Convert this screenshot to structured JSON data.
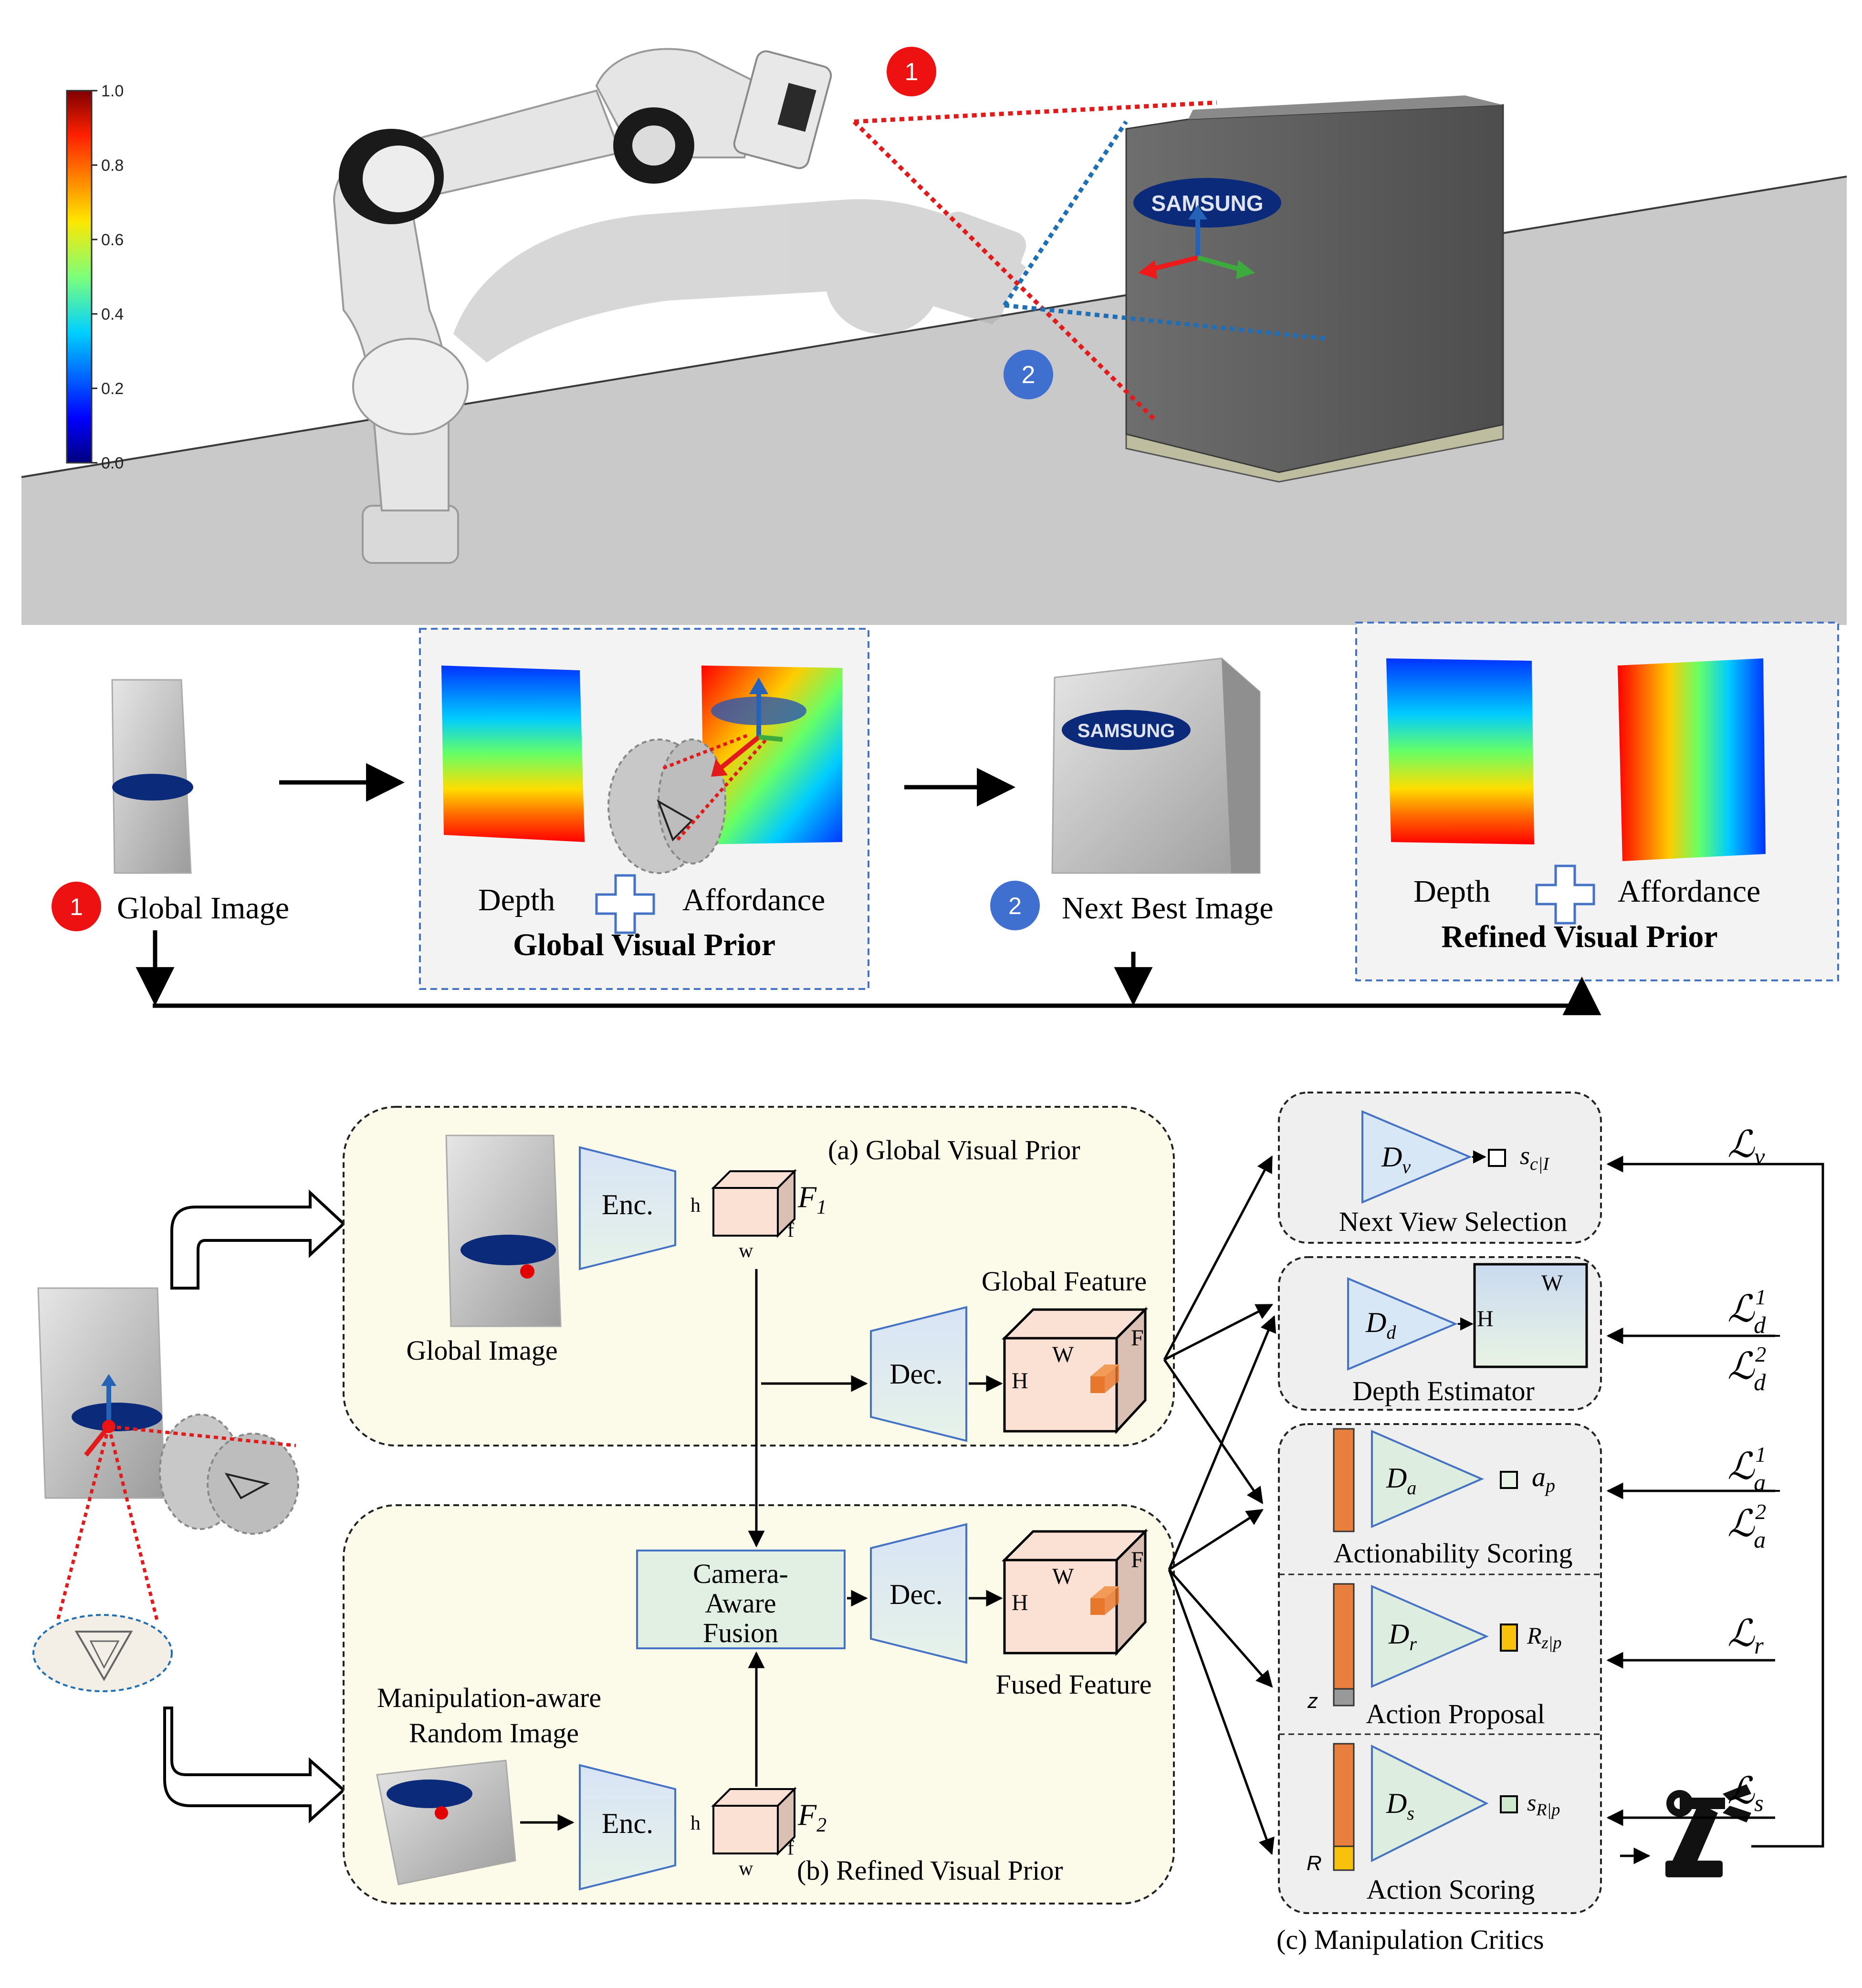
{
  "scene": {
    "colorbar_ticks": [
      "1.0",
      "0.8",
      "0.6",
      "0.4",
      "0.2",
      "0.0"
    ],
    "brand_logo": "SAMSUNG",
    "markers": [
      "1",
      "2"
    ]
  },
  "pipeline": {
    "global_image": "Global Image",
    "depth": "Depth",
    "affordance": "Affordance",
    "global_prior_title": "Global Visual Prior",
    "next_best_image": "Next Best Image",
    "refined_prior_title": "Refined Visual Prior",
    "marker_1": "1",
    "marker_2": "2"
  },
  "arch": {
    "panel_a_title": "(a)  Global Visual Prior",
    "panel_b_title": "(b)  Refined Visual Prior",
    "panel_c_title": "(c)  Manipulation Critics",
    "global_image": "Global  Image",
    "random_image_line1": "Manipulation-aware",
    "random_image_line2": "Random Image",
    "enc": "Enc.",
    "dec": "Dec.",
    "f1": "F",
    "f1_sub": "1",
    "f2": "F",
    "f2_sub": "2",
    "dim_h": "h",
    "dim_w": "w",
    "dim_f": "f",
    "dim_H": "H",
    "dim_W": "W",
    "dim_F": "F",
    "global_feature": "Global Feature",
    "fused_feature": "Fused Feature",
    "fusion_line1": "Camera-",
    "fusion_line2": "Aware",
    "fusion_line3": "Fusion",
    "z_label": "z",
    "r_label": "R"
  },
  "critics": {
    "next_view": {
      "label": "Next View Selection",
      "net": "D",
      "net_sub": "v",
      "out": "s",
      "out_sub": "c|I"
    },
    "depth": {
      "label": "Depth Estimator",
      "net": "D",
      "net_sub": "d"
    },
    "actionability": {
      "label": "Actionability Scoring",
      "net": "D",
      "net_sub": "a",
      "out": "a",
      "out_sub": "p"
    },
    "proposal": {
      "label": "Action Proposal",
      "net": "D",
      "net_sub": "r",
      "out": "R",
      "out_sub": "z|p"
    },
    "scoring": {
      "label": "Action Scoring",
      "net": "D",
      "net_sub": "s",
      "out": "s",
      "out_sub": "R|p"
    }
  },
  "losses": {
    "lv": "ℒ",
    "lv_sub": "v",
    "ld": "ℒ",
    "ld1_sup": "1",
    "ld2_sup": "2",
    "ld_sub": "d",
    "la": "ℒ",
    "la1_sup": "1",
    "la2_sup": "2",
    "la_sub": "a",
    "lr": "ℒ",
    "lr_sub": "r",
    "ls": "ℒ",
    "ls_sub": "s"
  }
}
